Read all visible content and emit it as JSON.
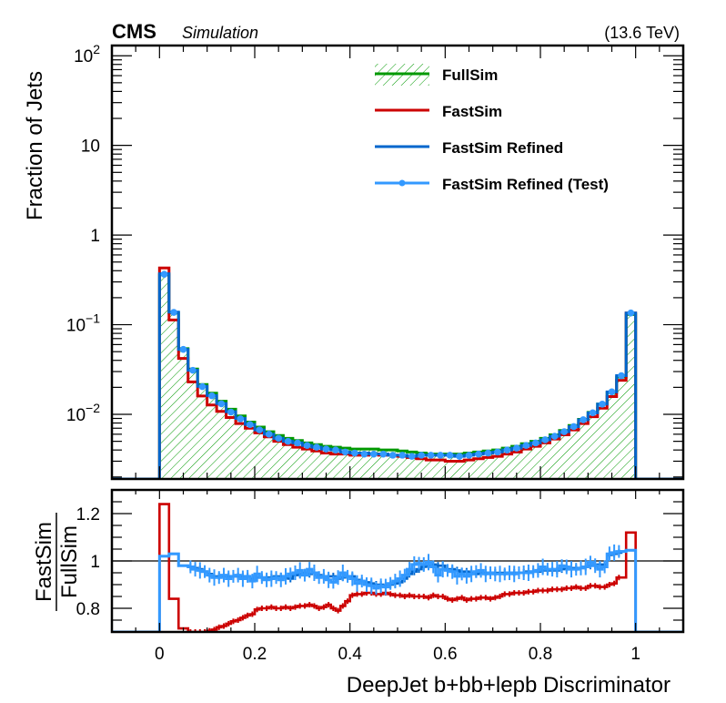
{
  "header": {
    "experiment": "CMS",
    "status": "Simulation",
    "energy": "(13.6 TeV)"
  },
  "colors": {
    "fullsim": "#009900",
    "fastsim": "#cc0000",
    "refined": "#0066cc",
    "refined_test": "#3399ff",
    "axis": "#000000"
  },
  "chart_data": [
    {
      "type": "line",
      "panel": "main",
      "title": "",
      "xlabel": "DeepJet b+bb+lepb Discriminator",
      "ylabel": "Fraction of Jets",
      "yscale": "log",
      "xlim": [
        -0.1,
        1.1
      ],
      "ylim": [
        0.0019,
        130
      ],
      "xticks": [
        0,
        0.2,
        0.4,
        0.6,
        0.8,
        1
      ],
      "ytick_labels": [
        {
          "value": 100,
          "base": "10",
          "exp": "2"
        },
        {
          "value": 10,
          "base": "10",
          "exp": ""
        },
        {
          "value": 1,
          "base": "1",
          "exp": ""
        },
        {
          "value": 0.1,
          "base": "10",
          "exp": "−1"
        },
        {
          "value": 0.01,
          "base": "10",
          "exp": "−2"
        }
      ],
      "legend_position": "top-right",
      "bin_edges_range": [
        0,
        1
      ],
      "n_bins": 50,
      "series": [
        {
          "name": "FullSim",
          "style": "hatched-fill",
          "values": [
            0.36,
            0.135,
            0.054,
            0.032,
            0.0215,
            0.0172,
            0.014,
            0.0114,
            0.0096,
            0.0082,
            0.0072,
            0.0064,
            0.0058,
            0.0054,
            0.0051,
            0.0048,
            0.0046,
            0.0044,
            0.0043,
            0.0042,
            0.0041,
            0.0041,
            0.0041,
            0.004,
            0.004,
            0.0039,
            0.0038,
            0.0037,
            0.0036,
            0.0036,
            0.0036,
            0.0036,
            0.0037,
            0.0038,
            0.0039,
            0.004,
            0.0042,
            0.0044,
            0.0047,
            0.005,
            0.0054,
            0.0059,
            0.0066,
            0.0075,
            0.0088,
            0.0105,
            0.013,
            0.0175,
            0.026,
            0.13
          ]
        },
        {
          "name": "FastSim",
          "style": "line",
          "values": [
            0.43,
            0.113,
            0.042,
            0.023,
            0.016,
            0.0127,
            0.0108,
            0.0092,
            0.0079,
            0.007,
            0.0062,
            0.0056,
            0.005,
            0.0046,
            0.0043,
            0.0041,
            0.0039,
            0.0037,
            0.0036,
            0.0036,
            0.0035,
            0.0035,
            0.0036,
            0.0035,
            0.0035,
            0.0034,
            0.0033,
            0.0032,
            0.0031,
            0.0031,
            0.003,
            0.003,
            0.0031,
            0.0032,
            0.0033,
            0.0034,
            0.0036,
            0.0038,
            0.0041,
            0.0044,
            0.0048,
            0.0053,
            0.0059,
            0.0067,
            0.0079,
            0.0094,
            0.0117,
            0.0158,
            0.024,
            0.135
          ]
        },
        {
          "name": "FastSim Refined",
          "style": "line",
          "values": [
            0.37,
            0.138,
            0.053,
            0.031,
            0.0205,
            0.0162,
            0.0132,
            0.0107,
            0.009,
            0.0077,
            0.0067,
            0.006,
            0.0054,
            0.005,
            0.0048,
            0.0045,
            0.0043,
            0.0041,
            0.004,
            0.0038,
            0.0037,
            0.0037,
            0.0036,
            0.0036,
            0.0035,
            0.0035,
            0.0034,
            0.0035,
            0.0035,
            0.0035,
            0.0035,
            0.0034,
            0.0035,
            0.0036,
            0.0037,
            0.0038,
            0.004,
            0.0042,
            0.0045,
            0.0048,
            0.0052,
            0.0057,
            0.0064,
            0.0073,
            0.0087,
            0.0104,
            0.013,
            0.0178,
            0.027,
            0.135
          ]
        },
        {
          "name": "FastSim Refined (Test)",
          "style": "line-markers",
          "values": [
            0.365,
            0.137,
            0.053,
            0.031,
            0.0204,
            0.0161,
            0.0131,
            0.0106,
            0.0089,
            0.0077,
            0.0067,
            0.006,
            0.0054,
            0.005,
            0.0048,
            0.0045,
            0.0043,
            0.0041,
            0.004,
            0.0038,
            0.0037,
            0.0036,
            0.0036,
            0.0036,
            0.0035,
            0.0035,
            0.0034,
            0.0035,
            0.0035,
            0.0035,
            0.0035,
            0.0034,
            0.0035,
            0.0036,
            0.0037,
            0.0038,
            0.004,
            0.0042,
            0.0045,
            0.0048,
            0.0052,
            0.0057,
            0.0064,
            0.0073,
            0.0087,
            0.0104,
            0.013,
            0.0178,
            0.027,
            0.135
          ]
        }
      ]
    },
    {
      "type": "line",
      "panel": "ratio",
      "xlabel": "DeepJet b+bb+lepb Discriminator",
      "ylabel_numerator": "FastSim",
      "ylabel_denominator": "FullSim",
      "xlim": [
        -0.1,
        1.1
      ],
      "ylim": [
        0.7,
        1.3
      ],
      "xticks": [
        0,
        0.2,
        0.4,
        0.6,
        0.8,
        1
      ],
      "xtick_labels": [
        "0",
        "0.2",
        "0.4",
        "0.6",
        "0.8",
        "1"
      ],
      "yticks": [
        0.8,
        1,
        1.2
      ],
      "ytick_labels": [
        "0.8",
        "1",
        "1.2"
      ],
      "reference_line": 1,
      "bin_edges_range": [
        0,
        1
      ],
      "n_bins": 100,
      "series": [
        {
          "name": "FastSim",
          "values": [
            1.24,
            1.24,
            0.84,
            0.84,
            0.715,
            0.715,
            0.7,
            0.7,
            0.7,
            0.7,
            0.705,
            0.71,
            0.72,
            0.725,
            0.735,
            0.745,
            0.75,
            0.76,
            0.77,
            0.775,
            0.795,
            0.8,
            0.8,
            0.805,
            0.8,
            0.8,
            0.805,
            0.8,
            0.805,
            0.81,
            0.81,
            0.815,
            0.81,
            0.8,
            0.805,
            0.815,
            0.8,
            0.79,
            0.81,
            0.83,
            0.855,
            0.86,
            0.86,
            0.865,
            0.865,
            0.86,
            0.86,
            0.865,
            0.86,
            0.855,
            0.855,
            0.85,
            0.855,
            0.85,
            0.85,
            0.85,
            0.845,
            0.855,
            0.85,
            0.85,
            0.84,
            0.835,
            0.84,
            0.845,
            0.835,
            0.84,
            0.84,
            0.845,
            0.845,
            0.84,
            0.845,
            0.85,
            0.86,
            0.86,
            0.865,
            0.865,
            0.865,
            0.87,
            0.87,
            0.875,
            0.875,
            0.875,
            0.88,
            0.88,
            0.88,
            0.885,
            0.885,
            0.89,
            0.885,
            0.885,
            0.895,
            0.895,
            0.89,
            0.89,
            0.9,
            0.905,
            0.93,
            0.93,
            1.12,
            1.12
          ]
        },
        {
          "name": "FastSim Refined",
          "values": [
            1.02,
            1.02,
            1.03,
            1.03,
            0.98,
            0.98,
            0.975,
            0.97,
            0.965,
            0.955,
            0.945,
            0.935,
            0.935,
            0.935,
            0.935,
            0.935,
            0.935,
            0.935,
            0.935,
            0.925,
            0.93,
            0.93,
            0.93,
            0.93,
            0.935,
            0.935,
            0.93,
            0.925,
            0.94,
            0.945,
            0.95,
            0.945,
            0.95,
            0.94,
            0.935,
            0.935,
            0.935,
            0.925,
            0.93,
            0.935,
            0.935,
            0.92,
            0.915,
            0.91,
            0.905,
            0.9,
            0.9,
            0.895,
            0.9,
            0.905,
            0.91,
            0.925,
            0.945,
            0.955,
            0.965,
            0.975,
            0.98,
            0.985,
            0.98,
            0.98,
            0.965,
            0.965,
            0.96,
            0.955,
            0.955,
            0.95,
            0.945,
            0.95,
            0.95,
            0.95,
            0.95,
            0.95,
            0.95,
            0.95,
            0.95,
            0.95,
            0.95,
            0.955,
            0.955,
            0.955,
            0.96,
            0.96,
            0.96,
            0.96,
            0.965,
            0.97,
            0.97,
            0.97,
            0.97,
            0.975,
            0.98,
            0.98,
            0.985,
            0.985,
            1.025,
            1.03,
            1.035,
            1.04,
            1.045,
            1.045
          ]
        },
        {
          "name": "FastSim Refined (Test)",
          "values": [
            1.02,
            1.02,
            1.03,
            1.03,
            0.98,
            0.98,
            0.975,
            0.965,
            0.96,
            0.955,
            0.94,
            0.93,
            0.93,
            0.94,
            0.925,
            0.935,
            0.94,
            0.925,
            0.935,
            0.915,
            0.945,
            0.93,
            0.92,
            0.925,
            0.93,
            0.92,
            0.935,
            0.945,
            0.95,
            0.96,
            0.94,
            0.965,
            0.95,
            0.93,
            0.935,
            0.92,
            0.91,
            0.93,
            0.95,
            0.935,
            0.925,
            0.905,
            0.915,
            0.9,
            0.895,
            0.885,
            0.895,
            0.89,
            0.905,
            0.915,
            0.925,
            0.94,
            0.965,
            0.985,
            0.99,
            0.985,
            0.995,
            0.975,
            0.94,
            0.965,
            0.96,
            0.955,
            0.935,
            0.945,
            0.935,
            0.945,
            0.955,
            0.96,
            0.945,
            0.95,
            0.945,
            0.945,
            0.945,
            0.95,
            0.945,
            0.95,
            0.95,
            0.95,
            0.955,
            0.96,
            0.975,
            0.965,
            0.965,
            0.965,
            0.98,
            0.975,
            0.965,
            0.965,
            0.97,
            0.975,
            0.995,
            0.98,
            0.965,
            0.975,
            1.03,
            1.035,
            1.04,
            1.04,
            1.045,
            1.045
          ]
        }
      ]
    }
  ]
}
